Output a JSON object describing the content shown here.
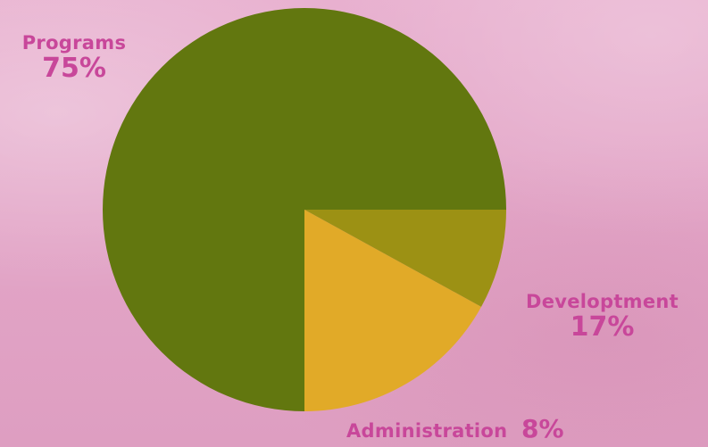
{
  "chart_data": {
    "type": "pie",
    "title": "",
    "slices": [
      {
        "label": "Programs",
        "value": 75,
        "value_label": "75%",
        "color": "#62770f"
      },
      {
        "label": "Developtment",
        "value": 17,
        "value_label": "17%",
        "color": "#e1aa28"
      },
      {
        "label": "Administration",
        "value": 8,
        "value_label": "8%",
        "color": "#9c9114"
      }
    ],
    "start_angle_deg": 0,
    "direction": "counterclockwise-from-east"
  },
  "colors": {
    "background": "#e4a9c9",
    "label_text": "#c8479a"
  }
}
